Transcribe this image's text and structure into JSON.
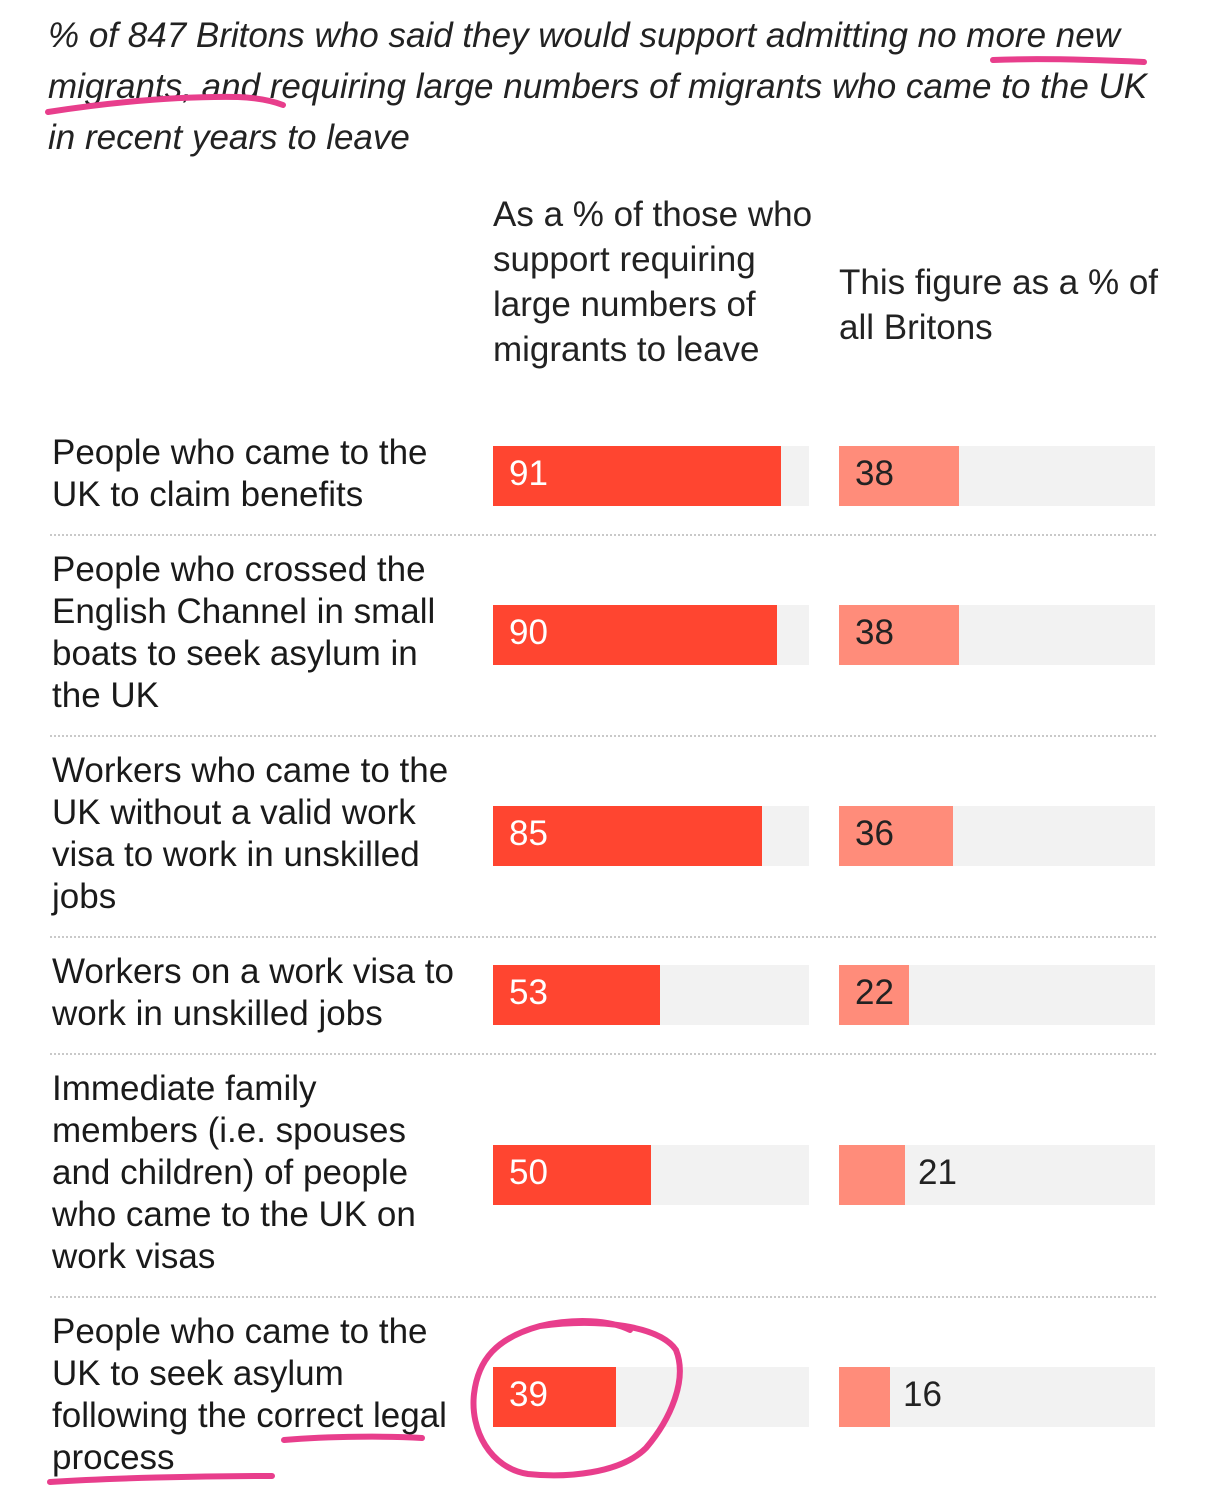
{
  "chart_data": {
    "type": "bar",
    "title": "% of 847 Britons who said they would support admitting no more new migrants, and requiring large numbers of migrants who came to the UK in recent years to leave",
    "title_parts": {
      "before": "% of 847 Britons who said they would support admitting ",
      "highlight": "no more new migrants,",
      "after": " and requiring large numbers of migrants who came to the UK in recent years to leave"
    },
    "xlim": [
      0,
      100
    ],
    "categories": [
      "People who came to the UK to claim benefits",
      "People who crossed the English Channel in small boats to seek asylum in the UK",
      "Workers who came to the UK without a valid work visa to work in unskilled jobs",
      "Workers on a work visa to work in unskilled jobs",
      "Immediate family members (i.e. spouses and children) of people who came to the UK on work visas",
      "People who came to the UK to seek asylum following the correct legal process"
    ],
    "series": [
      {
        "name": "As a % of those who support requiring large numbers of migrants to leave",
        "color": "#ff4530",
        "values": [
          91,
          90,
          85,
          53,
          50,
          39
        ]
      },
      {
        "name": "This figure as a % of all Britons",
        "color": "#ff8c7a",
        "values": [
          38,
          38,
          36,
          22,
          21,
          16
        ]
      }
    ],
    "annotations": {
      "color": "#e83e8c",
      "circled": "39",
      "underlined": [
        "no more new migrants,",
        "correct legal process"
      ]
    }
  }
}
